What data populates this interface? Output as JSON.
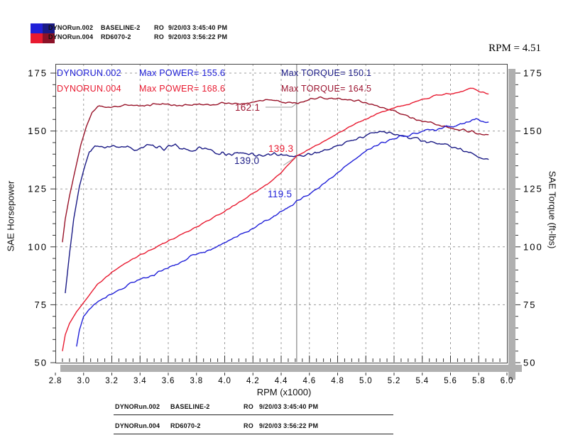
{
  "legend_top": {
    "rows": [
      {
        "file": "DYNORun.002",
        "setup": "BASELINE-2",
        "ro": "RO",
        "datetime": "9/20/03 3:45:40 PM"
      },
      {
        "file": "DYNORun.004",
        "setup": "RD6070-2",
        "ro": "RO",
        "datetime": "9/20/03 3:56:22 PM"
      }
    ],
    "swatches": [
      [
        "#2020d8",
        "#1a1a85"
      ],
      [
        "#e81a30",
        "#8c1228"
      ]
    ]
  },
  "rpm_readout": "RPM = 4.51",
  "chart_data": {
    "type": "line",
    "title": "",
    "xlabel": "RPM (x1000)",
    "ylabel_left": "SAE Horsepower",
    "ylabel_right": "SAE Torque (ft-lbs)",
    "xlim": [
      2.8,
      6.0
    ],
    "ylim": [
      50,
      175
    ],
    "x_tick_labels": [
      "2.8",
      "3.0",
      "3.2",
      "3.4",
      "3.6",
      "3.8",
      "4.0",
      "4.2",
      "4.4",
      "4.6",
      "4.8",
      "5.0",
      "5.2",
      "5.4",
      "5.6",
      "5.8",
      "6.0"
    ],
    "x_tick_values": [
      2.8,
      3.0,
      3.2,
      3.4,
      3.6,
      3.8,
      4.0,
      4.2,
      4.4,
      4.6,
      4.8,
      5.0,
      5.2,
      5.4,
      5.6,
      5.8,
      6.0
    ],
    "y_tick_values": [
      50,
      75,
      100,
      125,
      150,
      175
    ],
    "y_minor_step": 5,
    "x_minor_step": 0.05,
    "grid": "dashed",
    "cursor_rpm": 4.51,
    "annotations": [
      {
        "run": "DYNORUN.002",
        "power": "Max POWER= 155.6",
        "torque": "Max TORQUE= 150.1"
      },
      {
        "run": "DYNORUN.004",
        "power": "Max POWER= 168.6",
        "torque": "Max TORQUE= 164.5"
      }
    ],
    "cursor_values": {
      "torque_004": "162.1",
      "power_004": "139.3",
      "torque_002": "139.0",
      "power_002": "119.5"
    },
    "series": [
      {
        "id": "torque_002",
        "name": "SAE Torque DYNORUN.002",
        "color": "#1a1a85",
        "max": 150.1,
        "noise": 1.2,
        "points": [
          [
            2.87,
            80
          ],
          [
            2.9,
            97
          ],
          [
            2.93,
            112
          ],
          [
            2.97,
            126
          ],
          [
            3.0,
            133
          ],
          [
            3.04,
            141
          ],
          [
            3.08,
            143.5
          ],
          [
            3.15,
            142.5
          ],
          [
            3.25,
            143.5
          ],
          [
            3.35,
            142
          ],
          [
            3.45,
            143.5
          ],
          [
            3.55,
            142.5
          ],
          [
            3.65,
            143.5
          ],
          [
            3.75,
            141.5
          ],
          [
            3.85,
            142.5
          ],
          [
            3.95,
            140.5
          ],
          [
            4.05,
            140
          ],
          [
            4.15,
            140.5
          ],
          [
            4.25,
            139.5
          ],
          [
            4.35,
            140
          ],
          [
            4.45,
            139.5
          ],
          [
            4.51,
            139.0
          ],
          [
            4.6,
            140
          ],
          [
            4.7,
            141.5
          ],
          [
            4.8,
            143.5
          ],
          [
            4.9,
            146
          ],
          [
            5.0,
            148
          ],
          [
            5.1,
            150.1
          ],
          [
            5.2,
            149
          ],
          [
            5.3,
            147
          ],
          [
            5.4,
            146
          ],
          [
            5.5,
            144.5
          ],
          [
            5.6,
            143.5
          ],
          [
            5.7,
            141
          ],
          [
            5.8,
            139
          ],
          [
            5.87,
            138
          ]
        ]
      },
      {
        "id": "torque_004",
        "name": "SAE Torque DYNORUN.004",
        "color": "#981228",
        "max": 164.5,
        "noise": 0.7,
        "points": [
          [
            2.85,
            102
          ],
          [
            2.87,
            112
          ],
          [
            2.9,
            122
          ],
          [
            2.94,
            133
          ],
          [
            2.98,
            144
          ],
          [
            3.02,
            152
          ],
          [
            3.06,
            158
          ],
          [
            3.1,
            160.5
          ],
          [
            3.2,
            160.5
          ],
          [
            3.3,
            161
          ],
          [
            3.4,
            161
          ],
          [
            3.5,
            161.5
          ],
          [
            3.6,
            161.5
          ],
          [
            3.7,
            161
          ],
          [
            3.8,
            161.5
          ],
          [
            3.9,
            161.5
          ],
          [
            4.0,
            162
          ],
          [
            4.1,
            161.5
          ],
          [
            4.2,
            162.5
          ],
          [
            4.3,
            163.5
          ],
          [
            4.4,
            162.5
          ],
          [
            4.51,
            162.1
          ],
          [
            4.6,
            163.5
          ],
          [
            4.65,
            164.5
          ],
          [
            4.75,
            164
          ],
          [
            4.85,
            163.5
          ],
          [
            4.95,
            163
          ],
          [
            5.05,
            161.5
          ],
          [
            5.15,
            159.5
          ],
          [
            5.25,
            157.5
          ],
          [
            5.35,
            155
          ],
          [
            5.45,
            153.5
          ],
          [
            5.55,
            152
          ],
          [
            5.65,
            150.5
          ],
          [
            5.75,
            150
          ],
          [
            5.8,
            148.5
          ],
          [
            5.87,
            148.5
          ]
        ]
      },
      {
        "id": "power_004",
        "name": "SAE Horsepower DYNORUN.004",
        "color": "#e81a30",
        "max": 168.6,
        "noise": 0.5,
        "points": [
          [
            2.85,
            55
          ],
          [
            2.87,
            62
          ],
          [
            2.9,
            67
          ],
          [
            2.95,
            72
          ],
          [
            3.0,
            76
          ],
          [
            3.1,
            84
          ],
          [
            3.2,
            89
          ],
          [
            3.3,
            93
          ],
          [
            3.4,
            96.5
          ],
          [
            3.5,
            99.5
          ],
          [
            3.6,
            102.5
          ],
          [
            3.7,
            105.5
          ],
          [
            3.8,
            108.5
          ],
          [
            3.9,
            112
          ],
          [
            4.0,
            115.5
          ],
          [
            4.1,
            119
          ],
          [
            4.2,
            123
          ],
          [
            4.3,
            127
          ],
          [
            4.4,
            132
          ],
          [
            4.51,
            139.3
          ],
          [
            4.6,
            142
          ],
          [
            4.7,
            145.5
          ],
          [
            4.8,
            149
          ],
          [
            4.9,
            152.5
          ],
          [
            5.0,
            155
          ],
          [
            5.1,
            158
          ],
          [
            5.2,
            160
          ],
          [
            5.3,
            161.5
          ],
          [
            5.4,
            163.5
          ],
          [
            5.5,
            165.5
          ],
          [
            5.6,
            166
          ],
          [
            5.7,
            167.5
          ],
          [
            5.76,
            168.6
          ],
          [
            5.8,
            167.2
          ],
          [
            5.87,
            166
          ]
        ]
      },
      {
        "id": "power_002",
        "name": "SAE Horsepower DYNORUN.002",
        "color": "#2020d8",
        "max": 155.6,
        "noise": 0.9,
        "points": [
          [
            2.95,
            57
          ],
          [
            2.97,
            64
          ],
          [
            3.0,
            70
          ],
          [
            3.05,
            74
          ],
          [
            3.1,
            76
          ],
          [
            3.2,
            80
          ],
          [
            3.3,
            83
          ],
          [
            3.4,
            86
          ],
          [
            3.5,
            88
          ],
          [
            3.6,
            91
          ],
          [
            3.7,
            94
          ],
          [
            3.8,
            97
          ],
          [
            3.9,
            99
          ],
          [
            4.0,
            102
          ],
          [
            4.1,
            105
          ],
          [
            4.2,
            108
          ],
          [
            4.3,
            111.5
          ],
          [
            4.4,
            115
          ],
          [
            4.51,
            119.5
          ],
          [
            4.6,
            123
          ],
          [
            4.7,
            127
          ],
          [
            4.8,
            132
          ],
          [
            4.9,
            137
          ],
          [
            5.0,
            141.5
          ],
          [
            5.1,
            144.5
          ],
          [
            5.2,
            147
          ],
          [
            5.3,
            148
          ],
          [
            5.4,
            150
          ],
          [
            5.5,
            150.5
          ],
          [
            5.6,
            152
          ],
          [
            5.7,
            153.5
          ],
          [
            5.78,
            155.6
          ],
          [
            5.82,
            154.2
          ],
          [
            5.87,
            153.6
          ]
        ]
      }
    ]
  },
  "footer_table": {
    "rows": [
      {
        "file": "DYNORun.002",
        "setup": "BASELINE-2",
        "ro": "RO",
        "datetime": "9/20/03 3:45:40 PM"
      },
      {
        "file": "DYNORun.004",
        "setup": "RD6070-2",
        "ro": "RO",
        "datetime": "9/20/03 3:56:22 PM"
      }
    ]
  }
}
